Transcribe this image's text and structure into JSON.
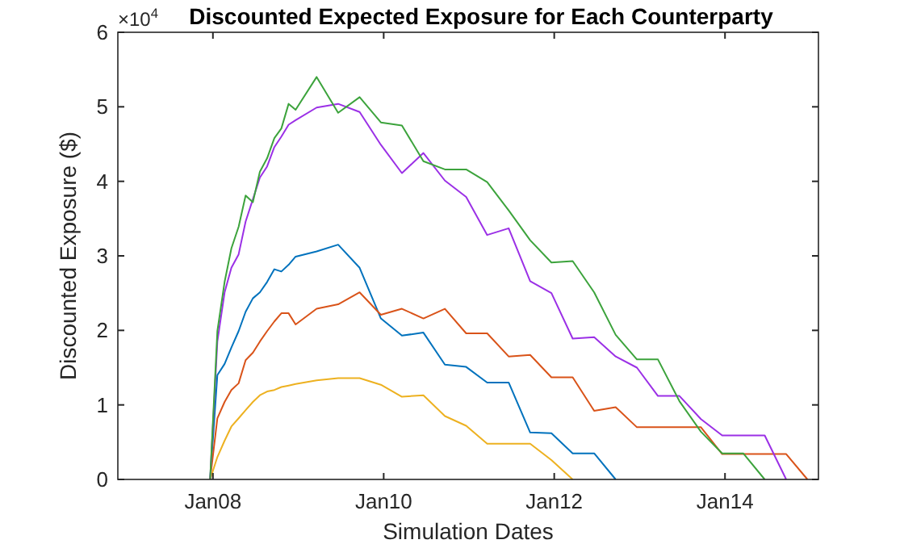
{
  "chart_data": {
    "type": "line",
    "title": "Discounted Expected Exposure for Each Counterparty",
    "xlabel": "Simulation Dates",
    "ylabel": "Discounted Exposure ($)",
    "annotations": [
      "×10$^{4}$"
    ],
    "x": [
      "2007-12-20",
      "2008-01-20",
      "2008-02-20",
      "2008-03-20",
      "2008-04-20",
      "2008-05-20",
      "2008-06-20",
      "2008-07-20",
      "2008-08-20",
      "2008-09-20",
      "2008-10-20",
      "2008-11-20",
      "2008-12-20",
      "2009-03-20",
      "2009-06-20",
      "2009-09-20",
      "2009-12-20",
      "2010-03-20",
      "2010-06-20",
      "2010-09-20",
      "2010-12-20",
      "2011-03-20",
      "2011-06-20",
      "2011-09-20",
      "2011-12-20",
      "2012-03-20",
      "2012-06-20",
      "2012-09-20",
      "2012-12-20",
      "2013-03-20",
      "2013-06-20",
      "2013-09-20",
      "2013-12-20",
      "2014-03-20",
      "2014-06-20",
      "2014-09-20",
      "2014-12-20"
    ],
    "xlim": [
      "2006-11-20",
      "2015-02-05"
    ],
    "xticks": [
      {
        "value": "2008-01-01",
        "label": "Jan08"
      },
      {
        "value": "2010-01-01",
        "label": "Jan10"
      },
      {
        "value": "2012-01-01",
        "label": "Jan12"
      },
      {
        "value": "2014-01-01",
        "label": "Jan14"
      }
    ],
    "ylim": [
      0,
      6
    ],
    "yticks": [
      0,
      1,
      2,
      3,
      4,
      5,
      6
    ],
    "grid": false,
    "marker": "none",
    "line_style": "solid",
    "series": [
      {
        "color": "#0072bd",
        "values": [
          0,
          1.4,
          1.55,
          1.77,
          1.99,
          2.25,
          2.43,
          2.51,
          2.65,
          2.82,
          2.79,
          2.88,
          2.99,
          3.06,
          3.15,
          2.84,
          2.16,
          1.93,
          1.97,
          1.54,
          1.51,
          1.3,
          1.3,
          0.63,
          0.62,
          0.35,
          0.35,
          0,
          null,
          null,
          null,
          null,
          null,
          null,
          null,
          null,
          null
        ]
      },
      {
        "color": "#d95319",
        "values": [
          0,
          0.82,
          1.04,
          1.2,
          1.29,
          1.6,
          1.7,
          1.85,
          1.99,
          2.12,
          2.23,
          2.23,
          2.08,
          2.29,
          2.35,
          2.51,
          2.21,
          2.29,
          2.16,
          2.29,
          1.96,
          1.96,
          1.65,
          1.67,
          1.37,
          1.37,
          0.92,
          0.97,
          0.7,
          0.7,
          0.7,
          0.7,
          0.34,
          0.34,
          0.34,
          0.34,
          0
        ]
      },
      {
        "color": "#edb120",
        "values": [
          0,
          0.3,
          0.52,
          0.71,
          0.82,
          0.93,
          1.04,
          1.13,
          1.18,
          1.2,
          1.24,
          1.26,
          1.28,
          1.33,
          1.36,
          1.36,
          1.27,
          1.11,
          1.13,
          0.85,
          0.72,
          0.48,
          0.48,
          0.48,
          0.26,
          0,
          null,
          null,
          null,
          null,
          null,
          null,
          null,
          null,
          null,
          null,
          null
        ]
      },
      {
        "color": "#9b30e6",
        "values": [
          0,
          1.85,
          2.51,
          2.84,
          3.02,
          3.46,
          3.76,
          4.05,
          4.2,
          4.46,
          4.6,
          4.76,
          4.82,
          4.99,
          5.04,
          4.93,
          4.49,
          4.11,
          4.38,
          4.01,
          3.79,
          3.28,
          3.37,
          2.66,
          2.5,
          1.89,
          1.91,
          1.65,
          1.5,
          1.12,
          1.12,
          0.81,
          0.59,
          0.59,
          0.59,
          0,
          null
        ]
      },
      {
        "color": "#3ca33c",
        "values": [
          0,
          1.99,
          2.65,
          3.1,
          3.39,
          3.81,
          3.72,
          4.13,
          4.31,
          4.58,
          4.71,
          5.04,
          4.96,
          5.4,
          4.92,
          5.13,
          4.79,
          4.75,
          4.27,
          4.16,
          4.16,
          3.99,
          3.61,
          3.21,
          2.91,
          2.93,
          2.51,
          1.94,
          1.61,
          1.61,
          1.05,
          0.64,
          0.35,
          0.35,
          0,
          null,
          null
        ]
      }
    ]
  }
}
